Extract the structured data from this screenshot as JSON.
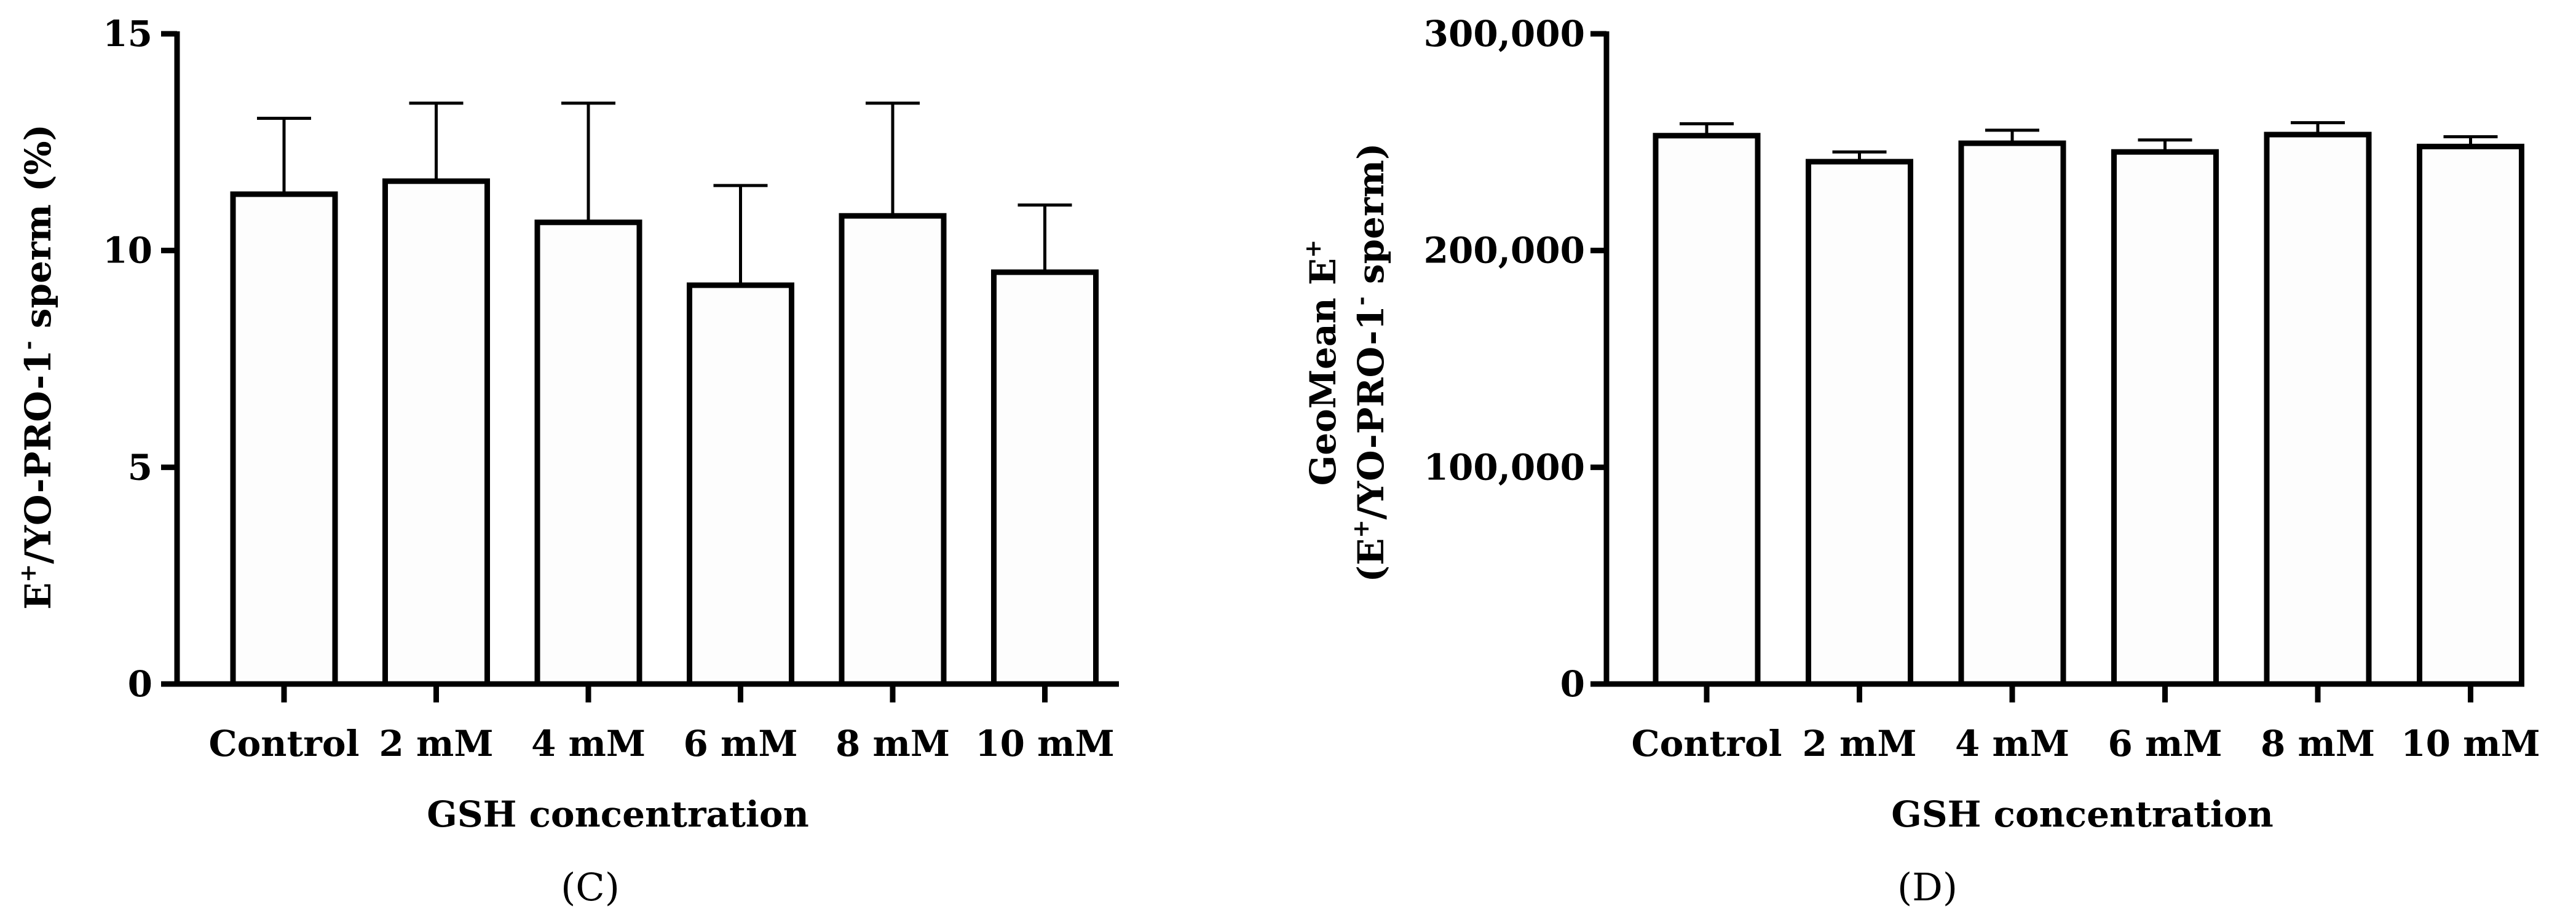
{
  "chart_data": [
    {
      "type": "bar",
      "panel_label": "(C)",
      "xlabel": "GSH concentration",
      "ylabel": {
        "part1": "E",
        "sup1": "+",
        "part2": "/YO-PRO-1",
        "sup2": "-",
        "part3": " sperm (%)"
      },
      "ylim": [
        0,
        15
      ],
      "yticks": [
        0,
        5,
        10,
        15
      ],
      "ytick_labels": [
        "0",
        "5",
        "10",
        "15"
      ],
      "categories": [
        "Control",
        "2 mM",
        "4 mM",
        "6 mM",
        "8 mM",
        "10 mM"
      ],
      "values": [
        11.3,
        11.6,
        10.65,
        9.2,
        10.8,
        9.5
      ],
      "error_upper": [
        1.75,
        1.8,
        2.75,
        2.3,
        2.6,
        1.55
      ],
      "bar_fill": "#fdfdfd",
      "bar_stroke": "#000000"
    },
    {
      "type": "bar",
      "panel_label": "(D)",
      "xlabel": "GSH concentration",
      "ylabel_line1": {
        "part1": "GeoMean E",
        "sup1": "+"
      },
      "ylabel_line2": {
        "part1": "(E",
        "sup1": "+",
        "part2": "/YO-PRO-1",
        "sup2": "-",
        "part3": " sperm)"
      },
      "ylim": [
        0,
        300000
      ],
      "yticks": [
        0,
        100000,
        200000,
        300000
      ],
      "ytick_labels": [
        "0",
        "100,000",
        "200,000",
        "300,000"
      ],
      "categories": [
        "Control",
        "2 mM",
        "4 mM",
        "6 mM",
        "8 mM",
        "10 mM"
      ],
      "values": [
        253000,
        241000,
        249500,
        245500,
        253500,
        248000
      ],
      "error_upper": [
        5500,
        4500,
        6000,
        5500,
        5500,
        4500
      ],
      "bar_fill": "#fdfdfd",
      "bar_stroke": "#000000"
    }
  ]
}
